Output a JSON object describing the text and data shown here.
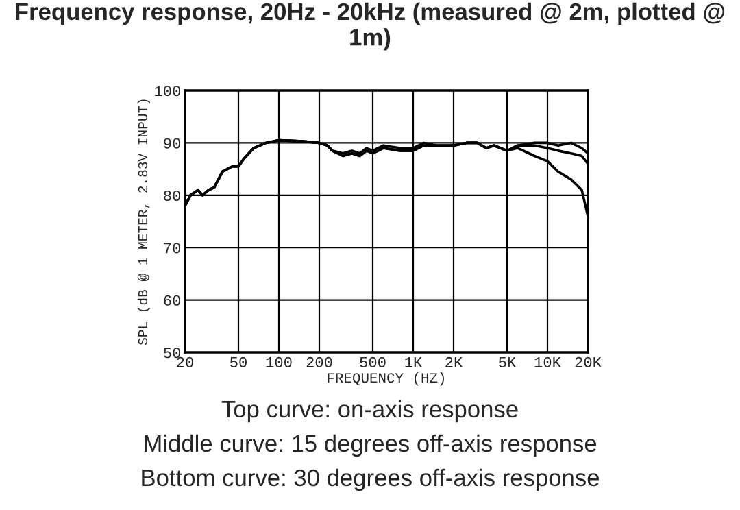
{
  "chart_data": {
    "type": "line",
    "title": "Frequency response, 20Hz - 20kHz (measured @ 2m, plotted @ 1m)",
    "xlabel": "FREQUENCY (HZ)",
    "ylabel": "SPL (dB @ 1 METER, 2.83V INPUT)",
    "log": "x",
    "grid": true,
    "legend": false,
    "xlim": [
      20,
      20000
    ],
    "ylim": [
      50,
      100
    ],
    "xticks": [
      20,
      50,
      100,
      200,
      500,
      {
        "value": 1000,
        "label": "1K"
      },
      {
        "value": 2000,
        "label": "2K"
      },
      {
        "value": 5000,
        "label": "5K"
      },
      {
        "value": 10000,
        "label": "10K"
      },
      {
        "value": 20000,
        "label": "20K"
      }
    ],
    "yticks": [
      50,
      60,
      70,
      80,
      90,
      100
    ],
    "x": [
      20,
      22,
      25,
      27,
      30,
      33,
      38,
      45,
      50,
      55,
      65,
      80,
      100,
      150,
      200,
      230,
      250,
      300,
      350,
      400,
      450,
      500,
      600,
      800,
      1000,
      1200,
      1500,
      2000,
      2500,
      3000,
      3500,
      4000,
      5000,
      6000,
      8000,
      10000,
      12000,
      15000,
      18000,
      20000
    ],
    "series": [
      {
        "color": "#000000",
        "values": [
          78,
          80,
          81,
          80,
          81,
          81.5,
          84.5,
          85.5,
          85.5,
          87,
          89,
          90,
          90.5,
          90.3,
          90,
          89.5,
          88.5,
          88,
          88.5,
          88,
          89,
          88.5,
          89.5,
          89,
          89,
          90,
          89.5,
          89.5,
          90,
          90,
          89,
          89.5,
          88.5,
          89.5,
          90,
          90,
          89.5,
          90,
          89,
          88
        ]
      },
      {
        "color": "#000000",
        "values": [
          78,
          80,
          81,
          80,
          81,
          81.5,
          84.5,
          85.5,
          85.5,
          87,
          89,
          90,
          90.5,
          90.3,
          90,
          89.5,
          88.5,
          87.5,
          88,
          87.5,
          88.5,
          88,
          89,
          88.5,
          88.5,
          89.5,
          89.5,
          89.5,
          90,
          90,
          89,
          89.5,
          88.5,
          89.5,
          89.5,
          89,
          88.5,
          88,
          87.5,
          86
        ]
      },
      {
        "color": "#000000",
        "values": [
          78,
          80,
          81,
          80,
          81,
          81.5,
          84.5,
          85.5,
          85.5,
          87,
          89,
          90,
          90.5,
          90.3,
          90,
          89.5,
          88.5,
          87.5,
          88,
          87.5,
          88.5,
          88,
          89,
          88.5,
          88.5,
          89.5,
          89.5,
          89.5,
          90,
          90,
          89,
          89.5,
          88.5,
          89,
          87.5,
          86.5,
          84.5,
          83,
          81,
          76
        ]
      }
    ],
    "annotations": [
      "Top curve: on-axis response",
      "Middle curve: 15 degrees off-axis response",
      "Bottom curve: 30 degrees off-axis response"
    ]
  }
}
